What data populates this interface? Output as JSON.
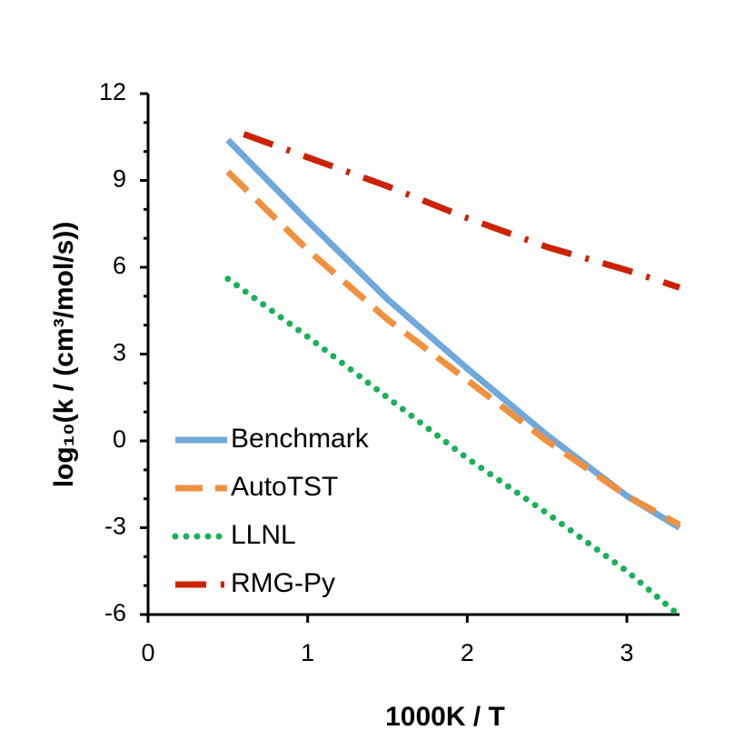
{
  "chart_data": {
    "type": "line",
    "xlabel": "1000K / T",
    "ylabel": "log₁₀(k / (cm³/mol/s))",
    "xlim": [
      0,
      3.33
    ],
    "xticks": [
      0,
      1,
      2,
      3
    ],
    "ylim": [
      -6,
      12
    ],
    "yticks": [
      -6,
      -3,
      0,
      3,
      6,
      9,
      12
    ],
    "yminorticks": [
      -5,
      -4,
      -2,
      -1,
      1,
      2,
      4,
      5,
      7,
      8,
      10,
      11
    ],
    "legend": "lower-left",
    "series": [
      {
        "name": "Benchmark",
        "color": "#6fa8dc",
        "style": "solid",
        "x": [
          0.5,
          1,
          1.5,
          2,
          2.5,
          3,
          3.33
        ],
        "values": [
          10.4,
          7.6,
          4.9,
          2.5,
          0.2,
          -1.9,
          -3.0
        ]
      },
      {
        "name": "AutoTST",
        "color": "#f0913f",
        "style": "dashed",
        "x": [
          0.5,
          1,
          1.5,
          2,
          2.5,
          3,
          3.33
        ],
        "values": [
          9.3,
          6.6,
          4.2,
          2.1,
          0.0,
          -1.9,
          -2.9
        ]
      },
      {
        "name": "LLNL",
        "color": "#19b15a",
        "style": "dotted",
        "x": [
          0.5,
          1,
          1.5,
          2,
          2.5,
          3,
          3.3
        ],
        "values": [
          5.6,
          3.6,
          1.5,
          -0.6,
          -2.5,
          -4.5,
          -5.9
        ]
      },
      {
        "name": "RMG-Py",
        "color": "#cc2200",
        "style": "dashdot",
        "x": [
          0.6,
          1,
          1.5,
          2,
          2.5,
          3,
          3.33
        ],
        "values": [
          10.6,
          9.8,
          8.8,
          7.7,
          6.7,
          5.9,
          5.3
        ]
      }
    ]
  }
}
